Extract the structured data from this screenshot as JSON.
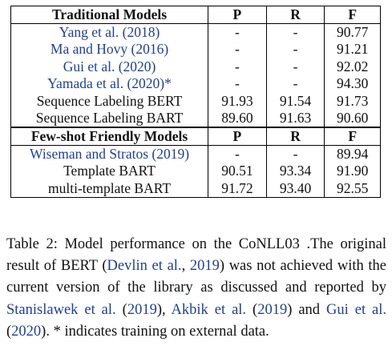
{
  "table": {
    "sections": [
      {
        "header": [
          "Traditional Models",
          "P",
          "R",
          "F"
        ],
        "rows": [
          {
            "model": "Yang et al. (2018)",
            "cite": true,
            "p": "-",
            "r": "-",
            "f": "90.77"
          },
          {
            "model": "Ma and Hovy (2016)",
            "cite": true,
            "p": "-",
            "r": "-",
            "f": "91.21"
          },
          {
            "model": "Gui et al. (2020)",
            "cite": true,
            "p": "-",
            "r": "-",
            "f": "92.02"
          },
          {
            "model": "Yamada et al. (2020)*",
            "cite": true,
            "p": "-",
            "r": "-",
            "f": "94.30"
          },
          {
            "model": "Sequence Labeling BERT",
            "cite": false,
            "p": "91.93",
            "r": "91.54",
            "f": "91.73"
          },
          {
            "model": "Sequence Labeling BART",
            "cite": false,
            "p": "89.60",
            "r": "91.63",
            "f": "90.60"
          }
        ]
      },
      {
        "header": [
          "Few-shot Friendly Models",
          "P",
          "R",
          "F"
        ],
        "rows": [
          {
            "model": "Wiseman and Stratos (2019)",
            "cite": true,
            "p": "-",
            "r": "-",
            "f": "89.94"
          },
          {
            "model": "Template BART",
            "cite": false,
            "p": "90.51",
            "r": "93.34",
            "f": "91.90"
          },
          {
            "model": "multi-template BART",
            "cite": false,
            "p": "91.72",
            "r": "93.40",
            "f": "92.55"
          }
        ]
      }
    ]
  },
  "caption": {
    "t1": "Table 2:  Model performance on the CoNLL03 .The original result of BERT (",
    "l1": "Devlin et al.",
    "t2": ", ",
    "l2": "2019",
    "t3": ") was not achieved with the current version of the library as discussed and reported by ",
    "l3": "Stanislawek et al.",
    "t4": " (",
    "l4": "2019",
    "t5": "), ",
    "l5": "Akbik et al.",
    "t6": " (",
    "l6": "2019",
    "t7": ") and ",
    "l7": "Gui et al.",
    "t8": " (",
    "l8": "2020",
    "t9": ").  * indicates training on external data."
  }
}
